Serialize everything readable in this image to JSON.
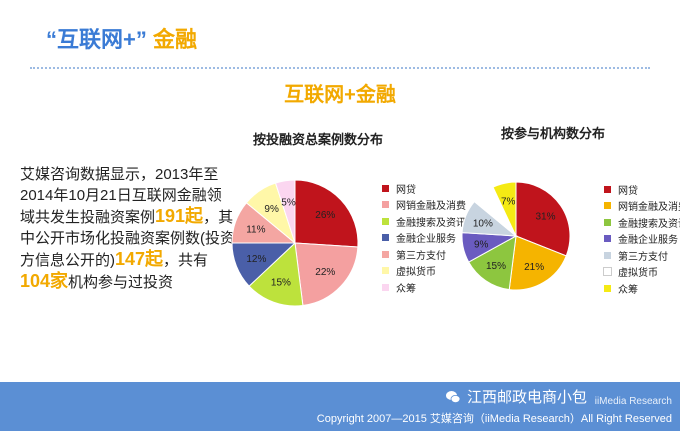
{
  "header": {
    "title_quoted": "“互联网+”",
    "title_highlight": "金融",
    "subtitle": "互联网+金融"
  },
  "summary": {
    "t1": "艾媒咨询数据显示，2013年至2014年10月21日互联网金融领域共发生投融资案例",
    "n1": "191起",
    "t2": "，其中公开市场化投融资案例数(投资方信息公开的)",
    "n2": "147起",
    "t3": "，共有",
    "n3": "104家",
    "t4": "机构参与过投资"
  },
  "chart_data": [
    {
      "type": "pie",
      "title": "按投融资总案例数分布",
      "labels": [
        "网贷",
        "网销金融及消费",
        "金融搜索及资讯",
        "金融企业服务",
        "第三方支付",
        "虚拟货币",
        "众筹"
      ],
      "values": [
        26,
        22,
        15,
        12,
        11,
        9,
        5
      ],
      "value_labels": [
        "26%",
        "22%",
        "15%",
        "12%",
        "11%",
        "9%",
        "5%"
      ],
      "colors": [
        "#c0141c",
        "#f4a0a0",
        "#bde23c",
        "#4a5fa8",
        "#f4a6a2",
        "#fff7a8",
        "#fbd6f0"
      ],
      "legend_position": "right"
    },
    {
      "type": "pie",
      "title": "按参与机构数分布",
      "labels": [
        "网贷",
        "网销金融及消费",
        "金融搜索及资讯",
        "金融企业服务",
        "第三方支付",
        "虚拟货币",
        "众筹"
      ],
      "values": [
        31,
        21,
        15,
        9,
        10,
        7,
        7
      ],
      "value_labels": [
        "31%",
        "21%",
        "15%",
        "9%",
        "10%",
        "",
        "7%"
      ],
      "colors": [
        "#c0141c",
        "#f5b400",
        "#8dc63f",
        "#6a5bc0",
        "#c8d4e0",
        "#ffffff",
        "#f5ea14"
      ],
      "legend_position": "right"
    }
  ],
  "footer": {
    "copyright": "Copyright 2007—2015 艾媒咨询（iiMedia Research）All Right Reserved",
    "watermark": "江西邮政电商小包",
    "watermark_sub": "iiMedia Research"
  },
  "icons": {
    "wechat": "wechat-icon"
  }
}
